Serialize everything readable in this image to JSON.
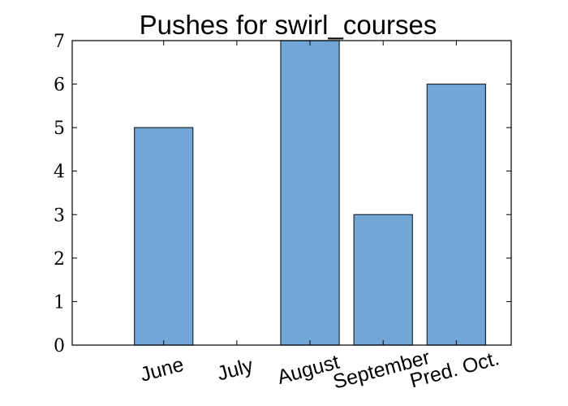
{
  "chart_data": {
    "type": "bar",
    "title": "Pushes for swirl_courses",
    "xlabel": "",
    "ylabel": "",
    "categories": [
      "June",
      "July",
      "August",
      "September",
      "Pred. Oct."
    ],
    "values": [
      5,
      0,
      7,
      3,
      6
    ],
    "ylim": [
      0,
      7
    ],
    "yticks": [
      0,
      1,
      2,
      3,
      4,
      5,
      6,
      7
    ],
    "grid": false,
    "colors": {
      "bar": "#72a6d5",
      "edge": "#1f2a33"
    }
  }
}
